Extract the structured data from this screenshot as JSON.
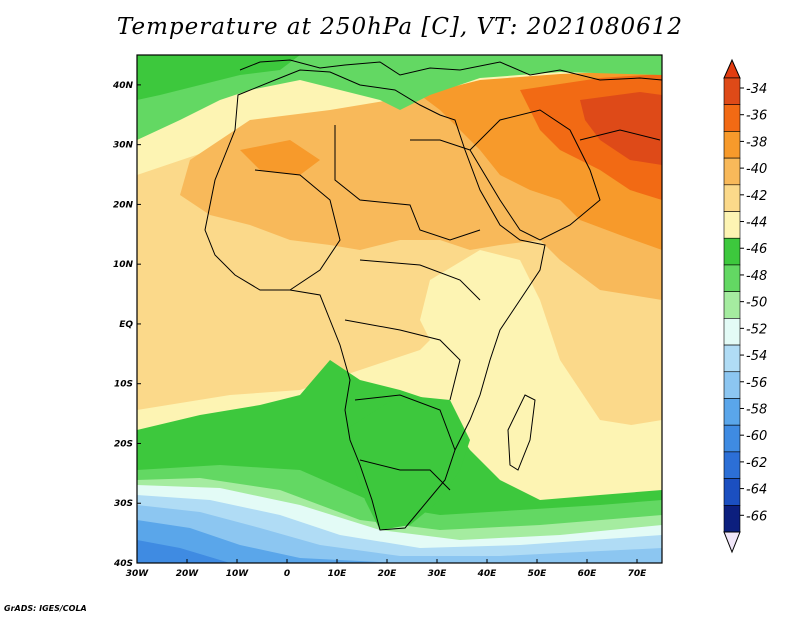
{
  "title": "Temperature at 250hPa [C], VT: 2021080612",
  "credit": "GrADS: IGES/COLA",
  "map": {
    "projection": "latlon",
    "lon_range": [
      -30,
      75
    ],
    "lat_range": [
      -40,
      45
    ],
    "lon_ticks": [
      {
        "value": -30,
        "label": "30W"
      },
      {
        "value": -20,
        "label": "20W"
      },
      {
        "value": -10,
        "label": "10W"
      },
      {
        "value": 0,
        "label": "0"
      },
      {
        "value": 10,
        "label": "10E"
      },
      {
        "value": 20,
        "label": "20E"
      },
      {
        "value": 30,
        "label": "30E"
      },
      {
        "value": 40,
        "label": "40E"
      },
      {
        "value": 50,
        "label": "50E"
      },
      {
        "value": 60,
        "label": "60E"
      },
      {
        "value": 70,
        "label": "70E"
      }
    ],
    "lat_ticks": [
      {
        "value": 40,
        "label": "40N"
      },
      {
        "value": 30,
        "label": "30N"
      },
      {
        "value": 20,
        "label": "20N"
      },
      {
        "value": 10,
        "label": "10N"
      },
      {
        "value": 0,
        "label": "EQ"
      },
      {
        "value": -10,
        "label": "10S"
      },
      {
        "value": -20,
        "label": "20S"
      },
      {
        "value": -30,
        "label": "30S"
      },
      {
        "value": -40,
        "label": "40S"
      }
    ]
  },
  "colorbar": {
    "orientation": "vertical",
    "placement": "right",
    "levels": [
      {
        "label": "-34",
        "color": "#de4a18"
      },
      {
        "label": "-36",
        "color": "#f26a14"
      },
      {
        "label": "-38",
        "color": "#f79a2b"
      },
      {
        "label": "-40",
        "color": "#f8b95a"
      },
      {
        "label": "-42",
        "color": "#fbd98a"
      },
      {
        "label": "-44",
        "color": "#fdf4b3"
      },
      {
        "label": "-46",
        "color": "#3dc83d"
      },
      {
        "label": "-48",
        "color": "#63d863"
      },
      {
        "label": "-50",
        "color": "#a5eca0"
      },
      {
        "label": "-52",
        "color": "#e3fbf6"
      },
      {
        "label": "-54",
        "color": "#b0dcf5"
      },
      {
        "label": "-56",
        "color": "#8cc6f1"
      },
      {
        "label": "-58",
        "color": "#5aa6ea"
      },
      {
        "label": "-60",
        "color": "#3f8be2"
      },
      {
        "label": "-62",
        "color": "#2c6fd6"
      },
      {
        "label": "-64",
        "color": "#1b4fc0"
      },
      {
        "label": "-66",
        "color": "#0c1f7e"
      }
    ],
    "top_color": "#e23c10",
    "bottom_color": "#f0e6f8"
  }
}
